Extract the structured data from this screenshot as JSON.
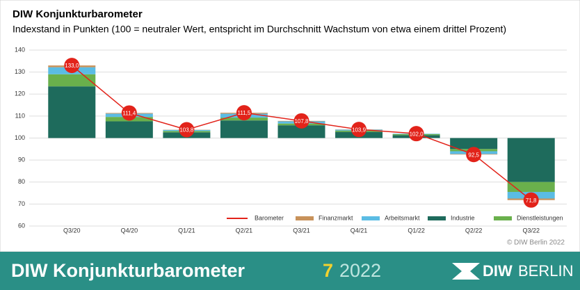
{
  "chart_data": {
    "type": "bar",
    "title": "DIW Konjunkturbarometer",
    "subtitle": "Indexstand in Punkten (100 = neutraler Wert, entspricht im Durchschnitt Wachstum von etwa einem drittel Prozent)",
    "categories": [
      "Q3/20",
      "Q4/20",
      "Q1/21",
      "Q2/21",
      "Q3/21",
      "Q4/21",
      "Q1/22",
      "Q2/22",
      "Q3/22"
    ],
    "baseline": 100,
    "ylim": [
      60,
      140
    ],
    "yticks": [
      60,
      70,
      80,
      90,
      100,
      110,
      120,
      130,
      140
    ],
    "grid": true,
    "line": {
      "name": "Barometer",
      "color": "#e2231a",
      "values": [
        133.0,
        111.4,
        103.8,
        111.5,
        107.8,
        103.9,
        102.0,
        92.5,
        71.8
      ],
      "value_labels": [
        "133,0",
        "111,4",
        "103,8",
        "111,5",
        "107,8",
        "103,9",
        "102,0",
        "92,5",
        "71,8"
      ]
    },
    "series": [
      {
        "name": "Finanzmarkt",
        "color": "#c8925a",
        "values": [
          0.8,
          0.3,
          0.1,
          0.4,
          0.2,
          0.1,
          0.0,
          -0.2,
          -0.7
        ]
      },
      {
        "name": "Arbeitsmarkt",
        "color": "#5bbce4",
        "values": [
          3.2,
          1.5,
          0.5,
          1.8,
          1.0,
          0.4,
          0.2,
          -1.3,
          -3.0
        ]
      },
      {
        "name": "Industrie",
        "color": "#1e6b5c",
        "values": [
          23.5,
          7.6,
          2.6,
          8.0,
          5.8,
          2.8,
          1.3,
          -5.0,
          -20.0
        ]
      },
      {
        "name": "Dienstleistungen",
        "color": "#6ab04c",
        "values": [
          5.5,
          2.0,
          0.6,
          1.3,
          0.8,
          0.6,
          0.5,
          -1.0,
          -4.5
        ]
      }
    ],
    "source": "© DIW Berlin 2022"
  },
  "footer": {
    "title": "DIW Konjunkturbarometer",
    "issue": "7",
    "year": "2022",
    "logo": "DIW",
    "logo2": "BERLIN"
  }
}
